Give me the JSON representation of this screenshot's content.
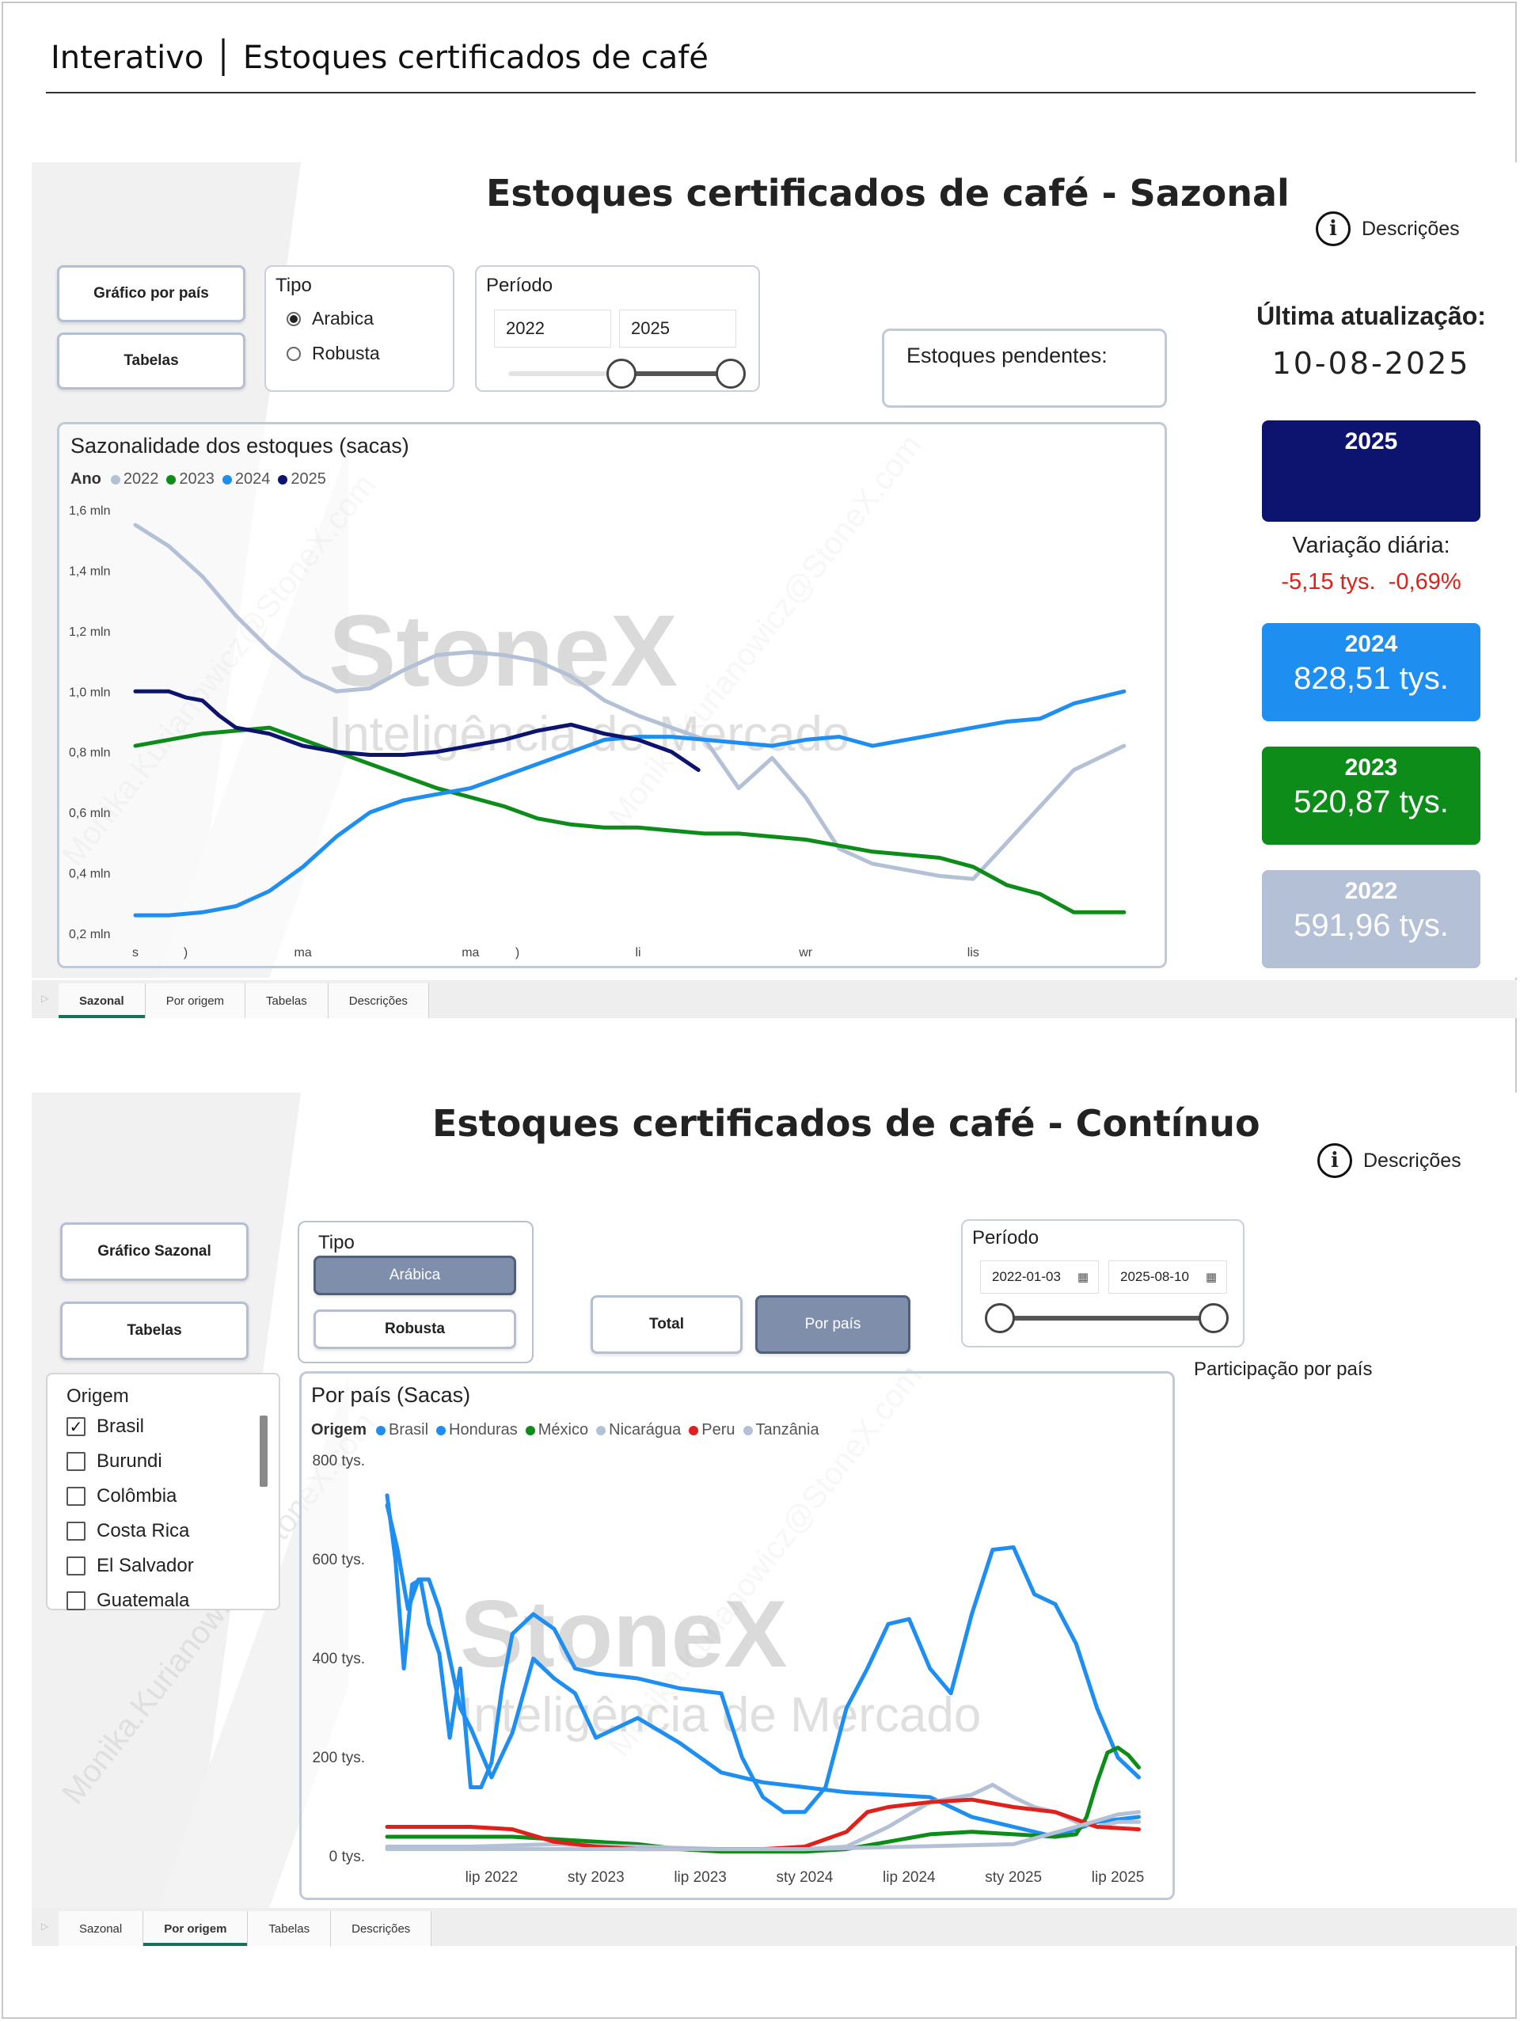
{
  "page_title": "Interativo │ Estoques certificados de café",
  "watermark": {
    "brand": "StoneX",
    "tagline": "Inteligência de Mercado",
    "email": "Monika.Kurianowicz@StoneX.com"
  },
  "seasonal": {
    "title": "Estoques certificados de café - Sazonal",
    "descriptions_link": "Descrições",
    "buttons": {
      "by_country": "Gráfico por país",
      "tables": "Tabelas"
    },
    "type_filter": {
      "label": "Tipo",
      "options": [
        "Arabica",
        "Robusta"
      ],
      "selected": "Arabica"
    },
    "period": {
      "label": "Período",
      "start": "2022",
      "end": "2025"
    },
    "pending": {
      "label": "Estoques pendentes:"
    },
    "last_update": {
      "label": "Última atualização:",
      "date": "10-08-2025"
    },
    "daily_change": {
      "label": "Variação diária:",
      "abs": "-5,15 tys.",
      "pct": "-0,69%"
    },
    "year_cards": [
      {
        "year": "2025",
        "value": "",
        "color": "#0d1470"
      },
      {
        "year": "2024",
        "value": "828,51 tys.",
        "color": "#1e8ef0"
      },
      {
        "year": "2023",
        "value": "520,87 tys.",
        "color": "#0d8c1a"
      },
      {
        "year": "2022",
        "value": "591,96 tys.",
        "color": "#b3c0d6"
      }
    ],
    "colors": {
      "negative": "#e0201b"
    },
    "chart_data": {
      "type": "line",
      "title": "Sazonalidade dos estoques (sacas)",
      "legend_title": "Ano",
      "legend_placement": "top-left",
      "ylim": [
        0.2,
        1.6
      ],
      "y_ticks": [
        "0,2 mln",
        "0,4 mln",
        "0,6 mln",
        "0,8 mln",
        "1,0 mln",
        "1,2 mln",
        "1,4 mln",
        "1,6 mln"
      ],
      "y_tick_values": [
        0.2,
        0.4,
        0.6,
        0.8,
        1.0,
        1.2,
        1.4,
        1.6
      ],
      "x_ticks": [
        "s",
        ")",
        "ma",
        "ma",
        ")",
        "li",
        "wr",
        "lis"
      ],
      "x_tick_positions": [
        0,
        1.5,
        5,
        10,
        11.4,
        15,
        20,
        25
      ],
      "xlim": [
        0,
        30
      ],
      "series": [
        {
          "name": "2022",
          "color": "#b3c0d6",
          "x": [
            0,
            1,
            2,
            3,
            4,
            5,
            6,
            7,
            8,
            9,
            10,
            11,
            12,
            13,
            14,
            15,
            16,
            17,
            18,
            19,
            20,
            21,
            22,
            23,
            24,
            25,
            26,
            27,
            28,
            29.5
          ],
          "y": [
            1.55,
            1.48,
            1.38,
            1.25,
            1.14,
            1.05,
            1.0,
            1.01,
            1.07,
            1.12,
            1.13,
            1.12,
            1.1,
            1.05,
            0.97,
            0.92,
            0.88,
            0.84,
            0.68,
            0.78,
            0.65,
            0.48,
            0.43,
            0.41,
            0.39,
            0.38,
            0.5,
            0.62,
            0.74,
            0.82
          ]
        },
        {
          "name": "2023",
          "color": "#0d8c1a",
          "x": [
            0,
            1,
            2,
            3,
            4,
            5,
            6,
            7,
            8,
            9,
            10,
            11,
            12,
            13,
            14,
            15,
            16,
            17,
            18,
            19,
            20,
            21,
            22,
            23,
            24,
            25,
            26,
            27,
            28,
            29.5
          ],
          "y": [
            0.82,
            0.84,
            0.86,
            0.87,
            0.88,
            0.84,
            0.8,
            0.76,
            0.72,
            0.68,
            0.65,
            0.62,
            0.58,
            0.56,
            0.55,
            0.55,
            0.54,
            0.53,
            0.53,
            0.52,
            0.51,
            0.49,
            0.47,
            0.46,
            0.45,
            0.42,
            0.36,
            0.33,
            0.27,
            0.27
          ]
        },
        {
          "name": "2024",
          "color": "#1e8ef0",
          "x": [
            0,
            1,
            2,
            3,
            4,
            5,
            6,
            7,
            8,
            9,
            10,
            11,
            12,
            13,
            14,
            15,
            16,
            17,
            18,
            19,
            20,
            21,
            22,
            23,
            24,
            25,
            26,
            27,
            28,
            29.5
          ],
          "y": [
            0.26,
            0.26,
            0.27,
            0.29,
            0.34,
            0.42,
            0.52,
            0.6,
            0.64,
            0.66,
            0.68,
            0.72,
            0.76,
            0.8,
            0.84,
            0.85,
            0.85,
            0.84,
            0.83,
            0.82,
            0.84,
            0.85,
            0.82,
            0.84,
            0.86,
            0.88,
            0.9,
            0.91,
            0.96,
            1.0
          ]
        },
        {
          "name": "2025",
          "color": "#0d1470",
          "x": [
            0,
            1,
            1.5,
            2,
            2.5,
            3,
            4,
            5,
            6,
            7,
            8,
            9,
            10,
            11,
            12,
            13,
            14,
            15,
            16,
            16.8
          ],
          "y": [
            1.0,
            1.0,
            0.98,
            0.97,
            0.92,
            0.88,
            0.86,
            0.82,
            0.8,
            0.79,
            0.79,
            0.8,
            0.82,
            0.84,
            0.87,
            0.89,
            0.86,
            0.84,
            0.8,
            0.74
          ]
        }
      ]
    },
    "tabs": [
      "Sazonal",
      "Por origem",
      "Tabelas",
      "Descrições"
    ],
    "active_tab": 0
  },
  "continuous": {
    "title": "Estoques certificados de café - Contínuo",
    "descriptions_link": "Descrições",
    "buttons": {
      "seasonal": "Gráfico Sazonal",
      "tables": "Tabelas",
      "total": "Total",
      "by_country": "Por país"
    },
    "type_filter": {
      "label": "Tipo",
      "options": [
        "Arábica",
        "Robusta"
      ],
      "selected": "Arábica"
    },
    "period": {
      "label": "Período",
      "start": "2022-01-03",
      "end": "2025-08-10"
    },
    "share_label": "Participação por país",
    "origin_filter": {
      "label": "Origem",
      "options": [
        "Brasil",
        "Burundi",
        "Colômbia",
        "Costa Rica",
        "El Salvador",
        "Guatemala"
      ],
      "checked": [
        "Brasil"
      ]
    },
    "chart_data": {
      "type": "line",
      "title": "Por país (Sacas)",
      "legend_title": "Origem",
      "legend_placement": "top-left",
      "ylim": [
        0,
        800
      ],
      "y_ticks": [
        "0 tys.",
        "200 tys.",
        "400 tys.",
        "600 tys.",
        "800 tys."
      ],
      "y_tick_values": [
        0,
        200,
        400,
        600,
        800
      ],
      "xlim": [
        2022.0,
        2025.64
      ],
      "x_ticks": [
        "lip 2022",
        "sty 2023",
        "lip 2023",
        "sty 2024",
        "lip 2024",
        "sty 2025",
        "lip 2025"
      ],
      "x_tick_values": [
        2022.5,
        2023.0,
        2023.5,
        2024.0,
        2024.5,
        2025.0,
        2025.5
      ],
      "series": [
        {
          "name": "Brasil",
          "color": "#1e8ef0",
          "x": [
            2022.0,
            2022.04,
            2022.08,
            2022.12,
            2022.16,
            2022.2,
            2022.25,
            2022.3,
            2022.35,
            2022.4,
            2022.45,
            2022.5,
            2022.55,
            2022.6,
            2022.7,
            2022.8,
            2022.9,
            2023.0,
            2023.2,
            2023.4,
            2023.6,
            2023.7,
            2023.8,
            2023.9,
            2024.0,
            2024.1,
            2024.2,
            2024.3,
            2024.4,
            2024.5,
            2024.6,
            2024.7,
            2024.8,
            2024.9,
            2025.0,
            2025.1,
            2025.2,
            2025.3,
            2025.4,
            2025.5,
            2025.6
          ],
          "y": [
            730,
            600,
            380,
            550,
            560,
            470,
            410,
            240,
            380,
            140,
            140,
            190,
            340,
            450,
            490,
            460,
            380,
            370,
            360,
            340,
            330,
            200,
            120,
            90,
            90,
            140,
            300,
            380,
            470,
            480,
            380,
            330,
            490,
            620,
            625,
            530,
            510,
            430,
            300,
            200,
            160
          ]
        },
        {
          "name": "Honduras",
          "color": "#1e8ef0",
          "x": [
            2022.0,
            2022.05,
            2022.1,
            2022.15,
            2022.2,
            2022.25,
            2022.3,
            2022.35,
            2022.4,
            2022.5,
            2022.6,
            2022.7,
            2022.8,
            2022.9,
            2023.0,
            2023.2,
            2023.4,
            2023.6,
            2023.8,
            2024.0,
            2024.2,
            2024.4,
            2024.6,
            2024.8,
            2025.0,
            2025.2,
            2025.4,
            2025.6
          ],
          "y": [
            710,
            620,
            500,
            560,
            560,
            500,
            400,
            300,
            260,
            160,
            250,
            400,
            360,
            330,
            240,
            280,
            230,
            170,
            150,
            140,
            130,
            125,
            120,
            80,
            60,
            40,
            70,
            80
          ]
        },
        {
          "name": "México",
          "color": "#0d8c1a",
          "x": [
            2022.0,
            2022.2,
            2022.4,
            2022.6,
            2022.8,
            2023.0,
            2023.2,
            2023.4,
            2023.6,
            2023.8,
            2024.0,
            2024.2,
            2024.4,
            2024.6,
            2024.8,
            2025.0,
            2025.2,
            2025.3,
            2025.35,
            2025.4,
            2025.45,
            2025.5,
            2025.55,
            2025.6
          ],
          "y": [
            40,
            40,
            40,
            40,
            35,
            30,
            25,
            15,
            10,
            10,
            10,
            15,
            30,
            45,
            50,
            45,
            40,
            45,
            80,
            150,
            210,
            220,
            205,
            180
          ]
        },
        {
          "name": "Nicarágua",
          "color": "#b3c0d6",
          "x": [
            2022.0,
            2022.4,
            2022.8,
            2023.2,
            2023.6,
            2024.0,
            2024.2,
            2024.4,
            2024.6,
            2024.8,
            2024.9,
            2025.0,
            2025.1,
            2025.2,
            2025.3,
            2025.4,
            2025.5,
            2025.6
          ],
          "y": [
            20,
            20,
            25,
            20,
            15,
            15,
            20,
            60,
            110,
            125,
            145,
            120,
            100,
            90,
            70,
            60,
            70,
            70
          ]
        },
        {
          "name": "Peru",
          "color": "#e0201b",
          "x": [
            2022.0,
            2022.2,
            2022.4,
            2022.6,
            2022.8,
            2023.0,
            2023.2,
            2023.4,
            2023.6,
            2023.8,
            2024.0,
            2024.2,
            2024.3,
            2024.4,
            2024.5,
            2024.6,
            2024.8,
            2025.0,
            2025.2,
            2025.4,
            2025.6
          ],
          "y": [
            60,
            60,
            60,
            55,
            30,
            20,
            15,
            15,
            15,
            15,
            20,
            50,
            90,
            100,
            105,
            110,
            115,
            100,
            90,
            60,
            55
          ]
        },
        {
          "name": "Tanzânia",
          "color": "#b3c0d6",
          "x": [
            2022.0,
            2022.5,
            2023.0,
            2023.5,
            2024.0,
            2024.5,
            2025.0,
            2025.3,
            2025.5,
            2025.6
          ],
          "y": [
            15,
            15,
            15,
            15,
            15,
            20,
            25,
            60,
            85,
            90
          ]
        }
      ]
    },
    "tabs": [
      "Sazonal",
      "Por origem",
      "Tabelas",
      "Descrições"
    ],
    "active_tab": 1
  }
}
